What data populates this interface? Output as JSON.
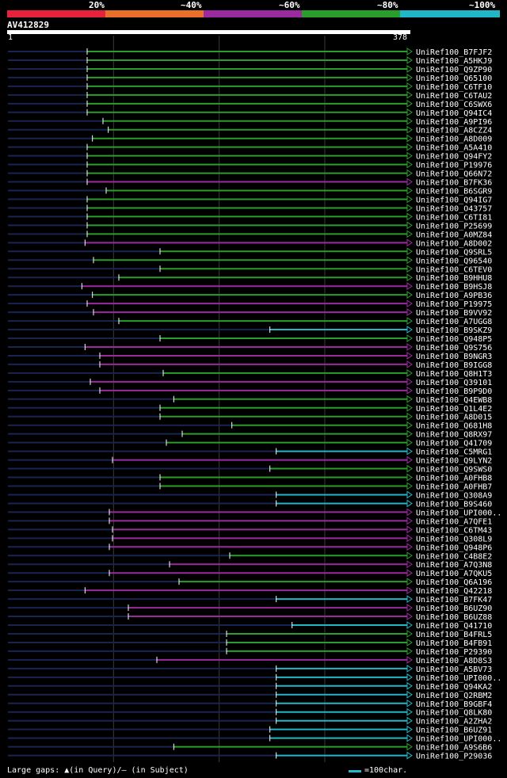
{
  "legend": {
    "labels": [
      "20%",
      "~40%",
      "~60%",
      "~80%",
      "~100%"
    ],
    "colors": [
      "#e8213c",
      "#e8702a",
      "#9b2aa0",
      "#2a9e2a",
      "#1fb8c8"
    ]
  },
  "query": {
    "id": "AV412829",
    "start": "1",
    "end": "378",
    "length": 378
  },
  "hits": [
    {
      "label": "UniRef100_B7FJF2",
      "from": 75,
      "color": "#2a9e2a"
    },
    {
      "label": "UniRef100_A5HKJ9",
      "from": 75,
      "color": "#2a9e2a"
    },
    {
      "label": "UniRef100_Q9ZP90",
      "from": 75,
      "color": "#2a9e2a"
    },
    {
      "label": "UniRef100_Q65100",
      "from": 75,
      "color": "#2a9e2a"
    },
    {
      "label": "UniRef100_C6TF10",
      "from": 75,
      "color": "#2a9e2a"
    },
    {
      "label": "UniRef100_C6TAU2",
      "from": 75,
      "color": "#2a9e2a"
    },
    {
      "label": "UniRef100_C6SWX6",
      "from": 75,
      "color": "#2a9e2a"
    },
    {
      "label": "UniRef100_Q94IC4",
      "from": 75,
      "color": "#2a9e2a"
    },
    {
      "label": "UniRef100_A9PI96",
      "from": 90,
      "color": "#2a9e2a"
    },
    {
      "label": "UniRef100_A8CZZ4",
      "from": 95,
      "color": "#2a9e2a"
    },
    {
      "label": "UniRef100_A8D009",
      "from": 80,
      "color": "#2a9e2a"
    },
    {
      "label": "UniRef100_A5A410",
      "from": 75,
      "color": "#2a9e2a"
    },
    {
      "label": "UniRef100_Q94FY2",
      "from": 75,
      "color": "#2a9e2a"
    },
    {
      "label": "UniRef100_P19976",
      "from": 75,
      "color": "#2a9e2a"
    },
    {
      "label": "UniRef100_Q66N72",
      "from": 75,
      "color": "#2a9e2a"
    },
    {
      "label": "UniRef100_B7FK36",
      "from": 75,
      "color": "#9b2aa0"
    },
    {
      "label": "UniRef100_B6SGR9",
      "from": 93,
      "color": "#2a9e2a"
    },
    {
      "label": "UniRef100_Q94IG7",
      "from": 75,
      "color": "#2a9e2a"
    },
    {
      "label": "UniRef100_O43757",
      "from": 75,
      "color": "#2a9e2a"
    },
    {
      "label": "UniRef100_C6TI81",
      "from": 75,
      "color": "#2a9e2a"
    },
    {
      "label": "UniRef100_P25699",
      "from": 75,
      "color": "#2a9e2a"
    },
    {
      "label": "UniRef100_A0MZ84",
      "from": 75,
      "color": "#2a9e2a"
    },
    {
      "label": "UniRef100_A8D002",
      "from": 73,
      "color": "#9b2aa0"
    },
    {
      "label": "UniRef100_Q9SRL5",
      "from": 144,
      "color": "#2a9e2a"
    },
    {
      "label": "UniRef100_Q96540",
      "from": 81,
      "color": "#2a9e2a"
    },
    {
      "label": "UniRef100_C6TEV0",
      "from": 144,
      "color": "#2a9e2a"
    },
    {
      "label": "UniRef100_B9HHU8",
      "from": 105,
      "color": "#2a9e2a"
    },
    {
      "label": "UniRef100_B9HSJ8",
      "from": 70,
      "color": "#9b2aa0"
    },
    {
      "label": "UniRef100_A9PB36",
      "from": 80,
      "color": "#2a9e2a"
    },
    {
      "label": "UniRef100_P19975",
      "from": 75,
      "color": "#9b2aa0"
    },
    {
      "label": "UniRef100_B9VV92",
      "from": 81,
      "color": "#9b2aa0"
    },
    {
      "label": "UniRef100_A7UGG8",
      "from": 105,
      "color": "#2a9e2a"
    },
    {
      "label": "UniRef100_B9SKZ9",
      "from": 248,
      "color": "#1fb8c8"
    },
    {
      "label": "UniRef100_Q948P5",
      "from": 144,
      "color": "#2a9e2a"
    },
    {
      "label": "UniRef100_Q9S756",
      "from": 73,
      "color": "#9b2aa0"
    },
    {
      "label": "UniRef100_B9NGR3",
      "from": 87,
      "color": "#9b2aa0"
    },
    {
      "label": "UniRef100_B9IGG8",
      "from": 87,
      "color": "#9b2aa0"
    },
    {
      "label": "UniRef100_Q8H1T3",
      "from": 147,
      "color": "#2a9e2a"
    },
    {
      "label": "UniRef100_Q39101",
      "from": 78,
      "color": "#9b2aa0"
    },
    {
      "label": "UniRef100_B9P9D0",
      "from": 87,
      "color": "#9b2aa0"
    },
    {
      "label": "UniRef100_Q4EWB8",
      "from": 157,
      "color": "#2a9e2a"
    },
    {
      "label": "UniRef100_Q1L4E2",
      "from": 144,
      "color": "#2a9e2a"
    },
    {
      "label": "UniRef100_A8D015",
      "from": 144,
      "color": "#2a9e2a"
    },
    {
      "label": "UniRef100_Q681H8",
      "from": 212,
      "color": "#2a9e2a"
    },
    {
      "label": "UniRef100_Q8RX97",
      "from": 165,
      "color": "#2a9e2a"
    },
    {
      "label": "UniRef100_Q41709",
      "from": 150,
      "color": "#2a9e2a"
    },
    {
      "label": "UniRef100_C5MRG1",
      "from": 254,
      "color": "#1fb8c8"
    },
    {
      "label": "UniRef100_Q9LYN2",
      "from": 99,
      "color": "#9b2aa0"
    },
    {
      "label": "UniRef100_Q9SWS0",
      "from": 248,
      "color": "#2a9e2a"
    },
    {
      "label": "UniRef100_A0FHB8",
      "from": 144,
      "color": "#2a9e2a"
    },
    {
      "label": "UniRef100_A0FHB7",
      "from": 144,
      "color": "#2a9e2a"
    },
    {
      "label": "UniRef100_Q308A9",
      "from": 254,
      "color": "#1fb8c8"
    },
    {
      "label": "UniRef100_B9S460",
      "from": 254,
      "color": "#1fb8c8"
    },
    {
      "label": "UniRef100_UPI000..",
      "from": 96,
      "color": "#9b2aa0"
    },
    {
      "label": "UniRef100_A7QFE1",
      "from": 96,
      "color": "#9b2aa0"
    },
    {
      "label": "UniRef100_C6TM43",
      "from": 99,
      "color": "#9b2aa0"
    },
    {
      "label": "UniRef100_Q308L9",
      "from": 99,
      "color": "#9b2aa0"
    },
    {
      "label": "UniRef100_Q948P6",
      "from": 96,
      "color": "#9b2aa0"
    },
    {
      "label": "UniRef100_C4B8E2",
      "from": 210,
      "color": "#2a9e2a"
    },
    {
      "label": "UniRef100_A7Q3N8",
      "from": 153,
      "color": "#9b2aa0"
    },
    {
      "label": "UniRef100_A7QKU5",
      "from": 96,
      "color": "#9b2aa0"
    },
    {
      "label": "UniRef100_Q6A196",
      "from": 162,
      "color": "#2a9e2a"
    },
    {
      "label": "UniRef100_Q42218",
      "from": 73,
      "color": "#9b2aa0"
    },
    {
      "label": "UniRef100_B7FK47",
      "from": 254,
      "color": "#1fb8c8"
    },
    {
      "label": "UniRef100_B6UZ90",
      "from": 114,
      "color": "#9b2aa0"
    },
    {
      "label": "UniRef100_B6UZ88",
      "from": 114,
      "color": "#9b2aa0"
    },
    {
      "label": "UniRef100_Q41710",
      "from": 269,
      "color": "#1fb8c8"
    },
    {
      "label": "UniRef100_B4FRL5",
      "from": 207,
      "color": "#2a9e2a"
    },
    {
      "label": "UniRef100_B4FB91",
      "from": 207,
      "color": "#2a9e2a"
    },
    {
      "label": "UniRef100_P29390",
      "from": 207,
      "color": "#2a9e2a"
    },
    {
      "label": "UniRef100_A8D8S3",
      "from": 141,
      "color": "#9b2aa0"
    },
    {
      "label": "UniRef100_A5BV73",
      "from": 254,
      "color": "#1fb8c8"
    },
    {
      "label": "UniRef100_UPI000..",
      "from": 254,
      "color": "#1fb8c8"
    },
    {
      "label": "UniRef100_Q94KA2",
      "from": 254,
      "color": "#1fb8c8"
    },
    {
      "label": "UniRef100_Q2RBM2",
      "from": 254,
      "color": "#1fb8c8"
    },
    {
      "label": "UniRef100_B9GBF4",
      "from": 254,
      "color": "#1fb8c8"
    },
    {
      "label": "UniRef100_Q8LK80",
      "from": 254,
      "color": "#1fb8c8"
    },
    {
      "label": "UniRef100_A2ZHA2",
      "from": 254,
      "color": "#1fb8c8"
    },
    {
      "label": "UniRef100_B6UZ91",
      "from": 248,
      "color": "#1fb8c8"
    },
    {
      "label": "UniRef100_UPI000..",
      "from": 248,
      "color": "#1fb8c8"
    },
    {
      "label": "UniRef100_A9S6B6",
      "from": 157,
      "color": "#2a9e2a"
    },
    {
      "label": "UniRef100_P29036",
      "from": 254,
      "color": "#1fb8c8"
    }
  ],
  "footer": {
    "text": "Large gaps: ▲(in Query)/– (in Subject)",
    "scale_label": "=100char."
  }
}
